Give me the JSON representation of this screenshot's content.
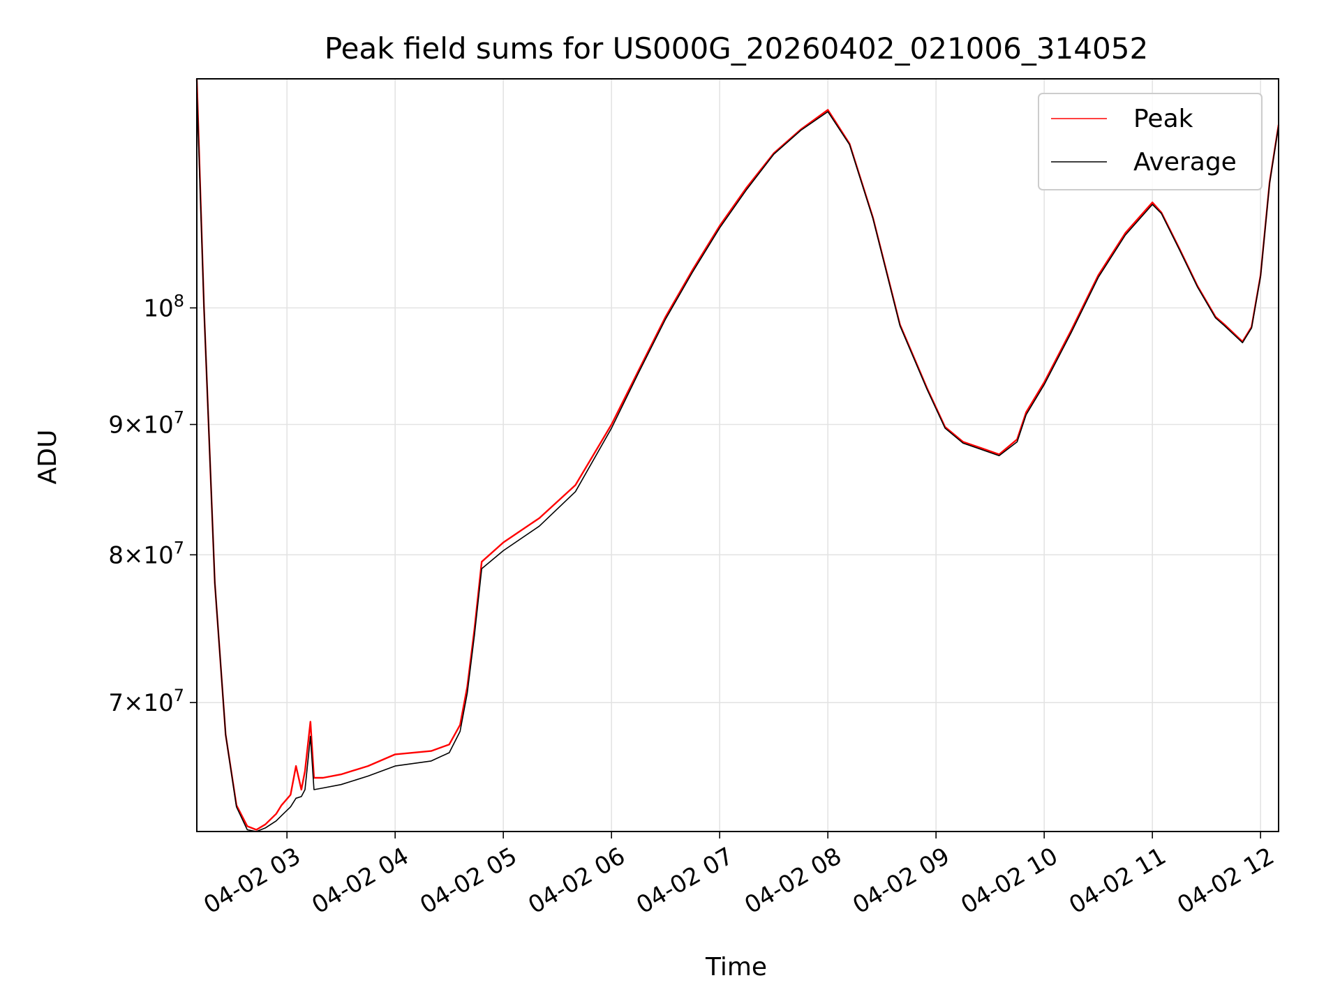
{
  "chart_data": {
    "type": "line",
    "title": "Peak field sums for US000G_20260402_021006_314052",
    "xlabel": "Time",
    "ylabel": "ADU",
    "yscale": "log",
    "grid": true,
    "legend_position": "top-right",
    "xlim": [
      "04-02 02:10",
      "04-02 12:10"
    ],
    "ylim": [
      62300000,
      123000000
    ],
    "x_ticks": [
      {
        "t": "04-02 03:00",
        "label": "04-02 03"
      },
      {
        "t": "04-02 04:00",
        "label": "04-02 04"
      },
      {
        "t": "04-02 05:00",
        "label": "04-02 05"
      },
      {
        "t": "04-02 06:00",
        "label": "04-02 06"
      },
      {
        "t": "04-02 07:00",
        "label": "04-02 07"
      },
      {
        "t": "04-02 08:00",
        "label": "04-02 08"
      },
      {
        "t": "04-02 09:00",
        "label": "04-02 09"
      },
      {
        "t": "04-02 10:00",
        "label": "04-02 10"
      },
      {
        "t": "04-02 11:00",
        "label": "04-02 11"
      },
      {
        "t": "04-02 12:00",
        "label": "04-02 12"
      }
    ],
    "y_ticks": [
      {
        "value": 70000000,
        "mant": "7",
        "base": "10",
        "exp": "7"
      },
      {
        "value": 80000000,
        "mant": "8",
        "base": "10",
        "exp": "7"
      },
      {
        "value": 90000000,
        "mant": "9",
        "base": "10",
        "exp": "7"
      },
      {
        "value": 100000000,
        "mant": "",
        "base": "10",
        "exp": "8"
      }
    ],
    "series": [
      {
        "name": "Peak",
        "color": "#ff0000",
        "x": [
          "04-02 02:10",
          "04-02 02:14",
          "04-02 02:20",
          "04-02 02:26",
          "04-02 02:32",
          "04-02 02:38",
          "04-02 02:43",
          "04-02 02:48",
          "04-02 02:54",
          "04-02 02:57",
          "04-02 03:02",
          "04-02 03:05",
          "04-02 03:08",
          "04-02 03:10",
          "04-02 03:13",
          "04-02 03:15",
          "04-02 03:20",
          "04-02 03:30",
          "04-02 03:45",
          "04-02 04:00",
          "04-02 04:20",
          "04-02 04:30",
          "04-02 04:36",
          "04-02 04:40",
          "04-02 04:44",
          "04-02 04:48",
          "04-02 05:00",
          "04-02 05:20",
          "04-02 05:40",
          "04-02 06:00",
          "04-02 06:15",
          "04-02 06:30",
          "04-02 06:45",
          "04-02 07:00",
          "04-02 07:15",
          "04-02 07:30",
          "04-02 07:45",
          "04-02 08:00",
          "04-02 08:12",
          "04-02 08:25",
          "04-02 08:40",
          "04-02 08:55",
          "04-02 09:05",
          "04-02 09:15",
          "04-02 09:25",
          "04-02 09:35",
          "04-02 09:45",
          "04-02 09:50",
          "04-02 10:00",
          "04-02 10:15",
          "04-02 10:30",
          "04-02 10:45",
          "04-02 11:00",
          "04-02 11:05",
          "04-02 11:15",
          "04-02 11:25",
          "04-02 11:35",
          "04-02 11:40",
          "04-02 11:50",
          "04-02 11:55",
          "04-02 12:00",
          "04-02 12:05",
          "04-02 12:10"
        ],
        "y": [
          123000000,
          100000000,
          78000000,
          68000000,
          63800000,
          62600000,
          62400000,
          62700000,
          63300000,
          63800000,
          64400000,
          66100000,
          64700000,
          65800000,
          68800000,
          65400000,
          65400000,
          65600000,
          66100000,
          66800000,
          67000000,
          67400000,
          68600000,
          71000000,
          74800000,
          79500000,
          80900000,
          82700000,
          85200000,
          90000000,
          94500000,
          99200000,
          103500000,
          107700000,
          111500000,
          115000000,
          117500000,
          119600000,
          116000000,
          108500000,
          98500000,
          93000000,
          89800000,
          88600000,
          88100000,
          87600000,
          88800000,
          91000000,
          93500000,
          98000000,
          103000000,
          107000000,
          110000000,
          109000000,
          105500000,
          102000000,
          99200000,
          98500000,
          97000000,
          98300000,
          103000000,
          112000000,
          118000000
        ]
      },
      {
        "name": "Average",
        "color": "#000000",
        "x": [
          "04-02 02:10",
          "04-02 02:14",
          "04-02 02:20",
          "04-02 02:26",
          "04-02 02:32",
          "04-02 02:38",
          "04-02 02:43",
          "04-02 02:48",
          "04-02 02:54",
          "04-02 02:57",
          "04-02 03:02",
          "04-02 03:05",
          "04-02 03:08",
          "04-02 03:10",
          "04-02 03:13",
          "04-02 03:15",
          "04-02 03:20",
          "04-02 03:30",
          "04-02 03:45",
          "04-02 04:00",
          "04-02 04:20",
          "04-02 04:30",
          "04-02 04:36",
          "04-02 04:40",
          "04-02 04:44",
          "04-02 04:48",
          "04-02 05:00",
          "04-02 05:20",
          "04-02 05:40",
          "04-02 06:00",
          "04-02 06:15",
          "04-02 06:30",
          "04-02 06:45",
          "04-02 07:00",
          "04-02 07:15",
          "04-02 07:30",
          "04-02 07:45",
          "04-02 08:00",
          "04-02 08:12",
          "04-02 08:25",
          "04-02 08:40",
          "04-02 08:55",
          "04-02 09:05",
          "04-02 09:15",
          "04-02 09:25",
          "04-02 09:35",
          "04-02 09:45",
          "04-02 09:50",
          "04-02 10:00",
          "04-02 10:15",
          "04-02 10:30",
          "04-02 10:45",
          "04-02 11:00",
          "04-02 11:05",
          "04-02 11:15",
          "04-02 11:25",
          "04-02 11:35",
          "04-02 11:40",
          "04-02 11:50",
          "04-02 11:55",
          "04-02 12:00",
          "04-02 12:05",
          "04-02 12:10"
        ],
        "y": [
          122000000,
          100000000,
          78000000,
          68000000,
          63700000,
          62400000,
          62300000,
          62500000,
          62900000,
          63200000,
          63700000,
          64200000,
          64300000,
          64700000,
          67900000,
          64700000,
          64800000,
          65000000,
          65500000,
          66100000,
          66400000,
          66900000,
          68200000,
          70600000,
          74400000,
          79000000,
          80300000,
          82100000,
          84700000,
          89700000,
          94300000,
          99000000,
          103300000,
          107500000,
          111300000,
          114900000,
          117400000,
          119400000,
          115900000,
          108400000,
          98400000,
          92900000,
          89700000,
          88500000,
          88000000,
          87500000,
          88600000,
          90800000,
          93300000,
          97800000,
          102800000,
          106800000,
          109800000,
          108900000,
          105400000,
          101900000,
          99100000,
          98400000,
          96900000,
          98200000,
          102900000,
          111900000,
          117900000
        ]
      }
    ]
  }
}
